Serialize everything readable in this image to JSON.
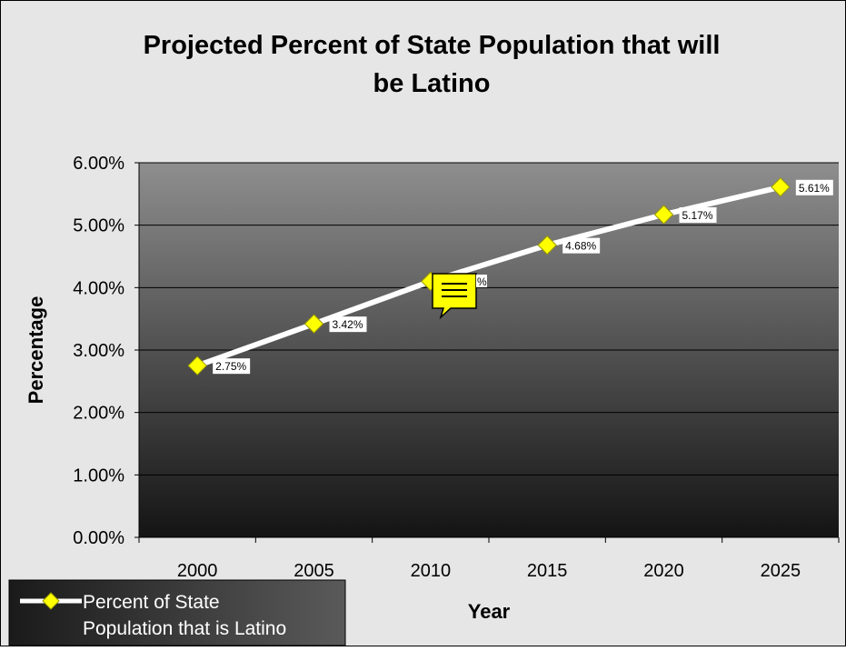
{
  "chart_data": {
    "type": "line",
    "title_line1": "Projected Percent of State Population that will",
    "title_line2": "be Latino",
    "xlabel": "Year",
    "ylabel": "Percentage",
    "categories": [
      "2000",
      "2005",
      "2010",
      "2015",
      "2020",
      "2025"
    ],
    "y_ticks": [
      "0.00%",
      "1.00%",
      "2.00%",
      "3.00%",
      "4.00%",
      "5.00%",
      "6.00%"
    ],
    "ylim": [
      0,
      6
    ],
    "grid": true,
    "legend_position": "bottom-left",
    "series": [
      {
        "name": "Percent of State Population that is Latino",
        "legend_line1": "Percent of State",
        "legend_line2": "Population that is Latino",
        "values": [
          2.75,
          3.42,
          4.1,
          4.68,
          5.17,
          5.61
        ],
        "labels": [
          "2.75%",
          "3.42%",
          "",
          "4.68%",
          "5.17%",
          "5.61%"
        ]
      }
    ],
    "comment_label": "%",
    "colors": {
      "line": "#ffffff",
      "marker": "#ffff00",
      "marker_stroke": "#999900",
      "plot_top": "#8e8e8e",
      "plot_bottom": "#141414",
      "page_bg": "#e6e6e6",
      "comment_icon": "#ffff00"
    }
  }
}
